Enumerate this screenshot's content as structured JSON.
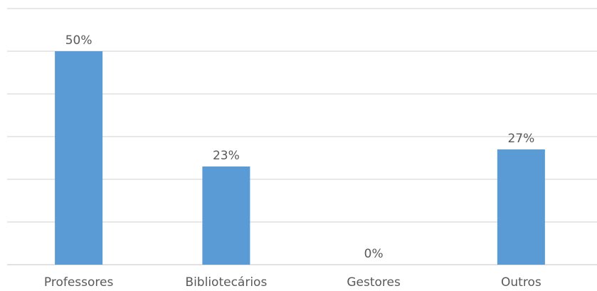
{
  "chart_data": {
    "type": "bar",
    "categories": [
      "Professores",
      "Bibliotecários",
      "Gestores",
      "Outros"
    ],
    "values": [
      50,
      23,
      0,
      27
    ],
    "data_labels": [
      "50%",
      "23%",
      "0%",
      "27%"
    ],
    "title": "",
    "xlabel": "",
    "ylabel": "",
    "ylim": [
      0,
      60
    ],
    "y_gridline_step": 10,
    "grid": true,
    "legend": "none",
    "y_tick_labels_visible": false,
    "bar_color": "#5b9bd5"
  }
}
